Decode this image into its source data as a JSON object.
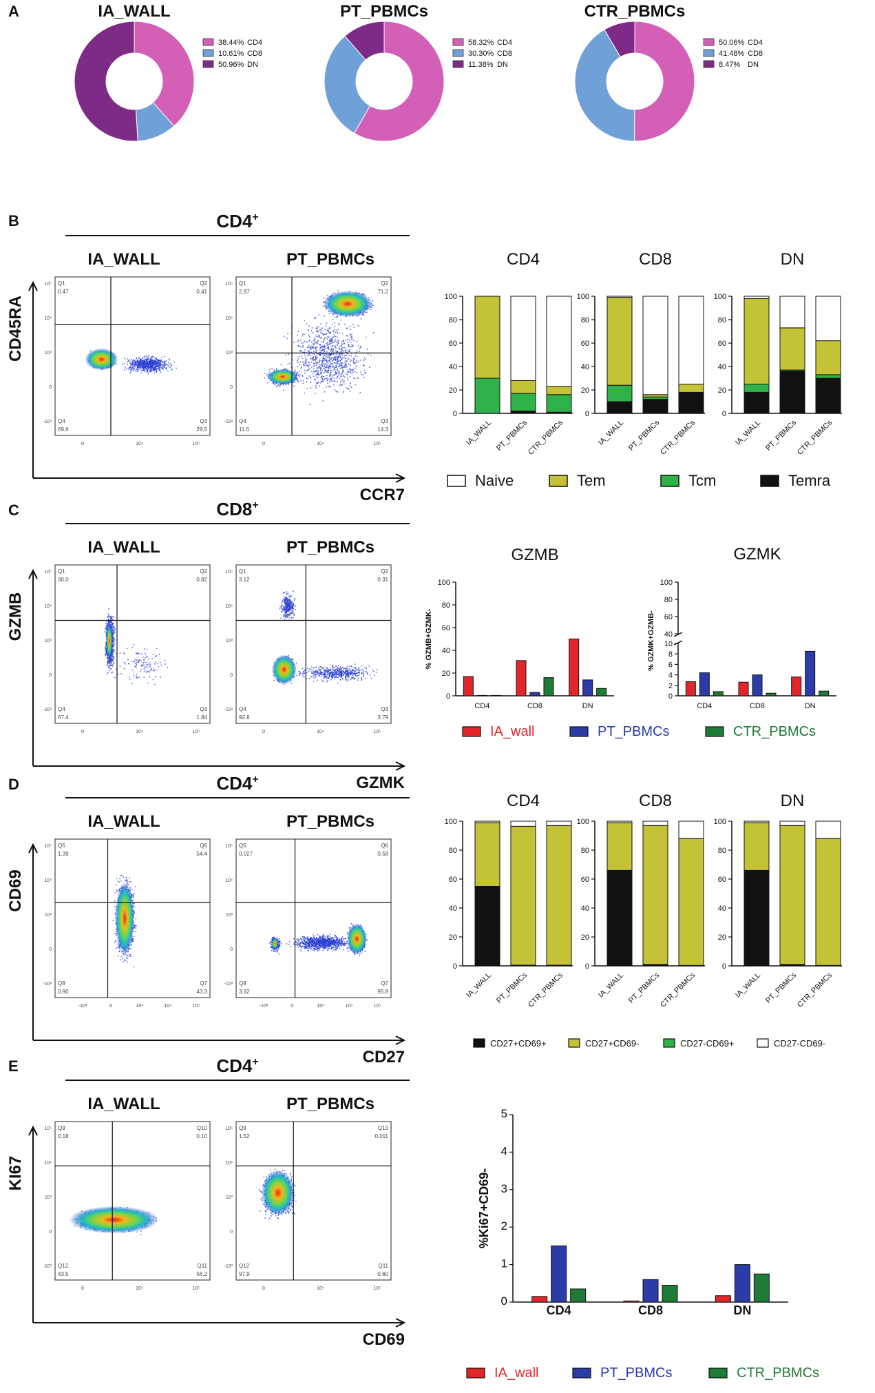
{
  "colors": {
    "cd4": "#d35fb7",
    "cd8": "#6fa0d8",
    "dn": "#7d2b86",
    "naive": "#ffffff",
    "tem": "#c4c236",
    "tcm": "#2fb24a",
    "temra": "#111111",
    "ia_wall": "#e3262b",
    "pt_pbmcs": "#2b3ba8",
    "ctr_pbmcs": "#1e7c36",
    "cd27p_cd69p": "#111111",
    "cd27p_cd69n": "#c4c236",
    "cd27n_cd69p": "#2fb24a",
    "cd27n_cd69n": "#ffffff"
  },
  "panel_labels": {
    "a": "A",
    "b": "B",
    "c": "C",
    "d": "D",
    "e": "E"
  },
  "chart_data": [
    {
      "panel": "A",
      "type": "pie",
      "donuts": [
        {
          "title": "IA_WALL",
          "slices": [
            {
              "label": "CD4",
              "pct": 38.44,
              "text": "38.44%"
            },
            {
              "label": "CD8",
              "pct": 10.61,
              "text": "10.61%"
            },
            {
              "label": "DN",
              "pct": 50.96,
              "text": "50.96%"
            }
          ]
        },
        {
          "title": "PT_PBMCs",
          "slices": [
            {
              "label": "CD4",
              "pct": 58.32,
              "text": "58.32%"
            },
            {
              "label": "CD8",
              "pct": 30.3,
              "text": "30.30%"
            },
            {
              "label": "DN",
              "pct": 11.38,
              "text": "11.38%"
            }
          ]
        },
        {
          "title": "CTR_PBMCs",
          "slices": [
            {
              "label": "CD4",
              "pct": 50.06,
              "text": "50.06%"
            },
            {
              "label": "CD8",
              "pct": 41.48,
              "text": "41.48%"
            },
            {
              "label": "DN",
              "pct": 8.47,
              "text": "8.47%"
            }
          ]
        }
      ]
    },
    {
      "panel": "B",
      "type": "scatter",
      "header": "CD4",
      "header_sup": "+",
      "xlabel": "CCR7",
      "ylabel": "CD45RA",
      "plots": [
        {
          "title": "IA_WALL",
          "quads": [
            "Q1",
            "0.47",
            "Q2",
            "0.41",
            "Q4",
            "69.6",
            "Q3",
            "29.5"
          ]
        },
        {
          "title": "PT_PBMCs",
          "quads": [
            "Q1",
            "2.87",
            "Q2",
            "71.2",
            "Q4",
            "11.6",
            "Q3",
            "14.3"
          ]
        }
      ]
    },
    {
      "panel": "B",
      "type": "bar",
      "stacked": true,
      "titles": [
        "CD4",
        "CD8",
        "DN"
      ],
      "categories": [
        "IA_WALL",
        "PT_PBMCs",
        "CTR_PBMCs"
      ],
      "yticks": [
        "0",
        "20",
        "40",
        "60",
        "80",
        "100"
      ],
      "ylim": [
        0,
        100
      ],
      "series_names": [
        "Temra",
        "Tcm",
        "Tem",
        "Naive"
      ],
      "values": [
        [
          [
            0,
            30,
            70,
            0
          ],
          [
            2,
            15,
            11,
            72
          ],
          [
            1,
            15,
            7,
            77
          ]
        ],
        [
          [
            10,
            14,
            75,
            1
          ],
          [
            12,
            2,
            2,
            84
          ],
          [
            18,
            0,
            7,
            75
          ]
        ],
        [
          [
            18,
            7,
            73,
            2
          ],
          [
            36,
            1,
            36,
            27
          ],
          [
            30,
            3,
            29,
            38
          ]
        ]
      ],
      "legend": [
        "Naive",
        "Tem",
        "Tcm",
        "Temra"
      ]
    },
    {
      "panel": "C",
      "type": "scatter",
      "header": "CD8",
      "header_sup": "+",
      "xlabel": "GZMK",
      "ylabel": "GZMB",
      "plots": [
        {
          "title": "IA_WALL",
          "quads": [
            "Q1",
            "30.0",
            "Q2",
            "0.82",
            "Q4",
            "67.4",
            "Q3",
            "1.84"
          ]
        },
        {
          "title": "PT_PBMCs",
          "quads": [
            "Q1",
            "3.12",
            "Q2",
            "0.31",
            "Q4",
            "92.8",
            "Q3",
            "3.79"
          ]
        }
      ]
    },
    {
      "panel": "C",
      "type": "bar",
      "title": "GZMB",
      "ylabel": "% GZMB+GZMK-",
      "categories": [
        "CD4",
        "CD8",
        "DN"
      ],
      "yticks": [
        "0",
        "20",
        "40",
        "60",
        "80",
        "100"
      ],
      "ylim": [
        0,
        100
      ],
      "series": [
        {
          "name": "IA_wall",
          "values": [
            17,
            31,
            50
          ]
        },
        {
          "name": "PT_PBMCs",
          "values": [
            0,
            3,
            14
          ]
        },
        {
          "name": "CTR_PBMCs",
          "values": [
            0,
            16,
            6.5
          ]
        }
      ]
    },
    {
      "panel": "C",
      "type": "bar",
      "title": "GZMK",
      "ylabel": "% GZMK+GZMB-",
      "categories": [
        "CD4",
        "CD8",
        "DN"
      ],
      "yticks_low": [
        "0",
        "2",
        "4",
        "6",
        "8",
        "10"
      ],
      "yticks_high": [
        "40",
        "60",
        "80",
        "100"
      ],
      "ylim": [
        0,
        100
      ],
      "axis_break": [
        10,
        40
      ],
      "series": [
        {
          "name": "IA_wall",
          "values": [
            2.7,
            2.6,
            3.6
          ]
        },
        {
          "name": "PT_PBMCs",
          "values": [
            4.4,
            4.0,
            8.5
          ]
        },
        {
          "name": "CTR_PBMCs",
          "values": [
            0.8,
            0.5,
            0.9
          ]
        }
      ]
    },
    {
      "panel": "C",
      "legend": [
        "IA_wall",
        "PT_PBMCs",
        "CTR_PBMCs"
      ]
    },
    {
      "panel": "D",
      "type": "scatter",
      "header": "CD4",
      "header_sup": "+",
      "xlabel": "CD27",
      "ylabel": "CD69",
      "plots": [
        {
          "title": "IA_WALL",
          "quads": [
            "Q5",
            "1.39",
            "Q6",
            "54.4",
            "Q8",
            "0.90",
            "Q7",
            "43.3"
          ]
        },
        {
          "title": "PT_PBMCs",
          "quads": [
            "Q5",
            "0.027",
            "Q6",
            "0.58",
            "Q8",
            "3.62",
            "Q7",
            "95.8"
          ]
        }
      ]
    },
    {
      "panel": "D",
      "type": "bar",
      "stacked": true,
      "titles": [
        "CD4",
        "CD8",
        "DN"
      ],
      "categories": [
        "IA_WALL",
        "PT_PBMCs",
        "CTR_PBMCs"
      ],
      "yticks": [
        "0",
        "20",
        "40",
        "60",
        "80",
        "100"
      ],
      "ylim": [
        0,
        100
      ],
      "series_names": [
        "CD27+CD69+",
        "CD27+CD69-",
        "CD27-CD69+",
        "CD27-CD69-"
      ],
      "values": [
        [
          [
            55,
            44,
            0,
            1
          ],
          [
            0.5,
            96,
            0,
            3.5
          ],
          [
            0.5,
            96.5,
            0,
            3
          ]
        ],
        [
          [
            66,
            33,
            0,
            1
          ],
          [
            1,
            96,
            0,
            3
          ],
          [
            0.3,
            87.7,
            0,
            12
          ]
        ],
        [
          [
            66,
            33,
            0,
            1
          ],
          [
            1,
            96,
            0,
            3
          ],
          [
            0.3,
            87.7,
            0,
            12
          ]
        ]
      ],
      "legend": [
        "CD27+CD69+",
        "CD27+CD69-",
        "CD27-CD69+",
        "CD27-CD69-"
      ]
    },
    {
      "panel": "E",
      "type": "scatter",
      "header": "CD4",
      "header_sup": "+",
      "xlabel": "CD69",
      "ylabel": "KI67",
      "plots": [
        {
          "title": "IA_WALL",
          "quads": [
            "Q9",
            "0.18",
            "Q10",
            "0.10",
            "Q12",
            "43.5",
            "Q11",
            "56.2"
          ]
        },
        {
          "title": "PT_PBMCs",
          "quads": [
            "Q9",
            "1.52",
            "Q10",
            "0.011",
            "Q12",
            "97.9",
            "Q11",
            "0.60"
          ]
        }
      ]
    },
    {
      "panel": "E",
      "type": "bar",
      "ylabel": "%Ki67+CD69-",
      "categories": [
        "CD4",
        "CD8",
        "DN"
      ],
      "yticks": [
        "0",
        "1",
        "2",
        "3",
        "4",
        "5"
      ],
      "ylim": [
        0,
        5
      ],
      "series": [
        {
          "name": "IA_wall",
          "values": [
            0.15,
            0.03,
            0.17
          ]
        },
        {
          "name": "PT_PBMCs",
          "values": [
            1.5,
            0.6,
            1.0
          ]
        },
        {
          "name": "CTR_PBMCs",
          "values": [
            0.35,
            0.45,
            0.75
          ]
        }
      ],
      "legend": [
        "IA_wall",
        "PT_PBMCs",
        "CTR_PBMCs"
      ]
    }
  ],
  "flow_axis": {
    "y_ticks": [
      "10⁵",
      "10⁴",
      "10³",
      "0",
      "-10³"
    ],
    "x_ticks_bc": [
      "0",
      "10⁴",
      "10⁵"
    ],
    "x_ticks_de": [
      "-10³",
      "0",
      "10³",
      "10⁴",
      "10⁵"
    ]
  }
}
